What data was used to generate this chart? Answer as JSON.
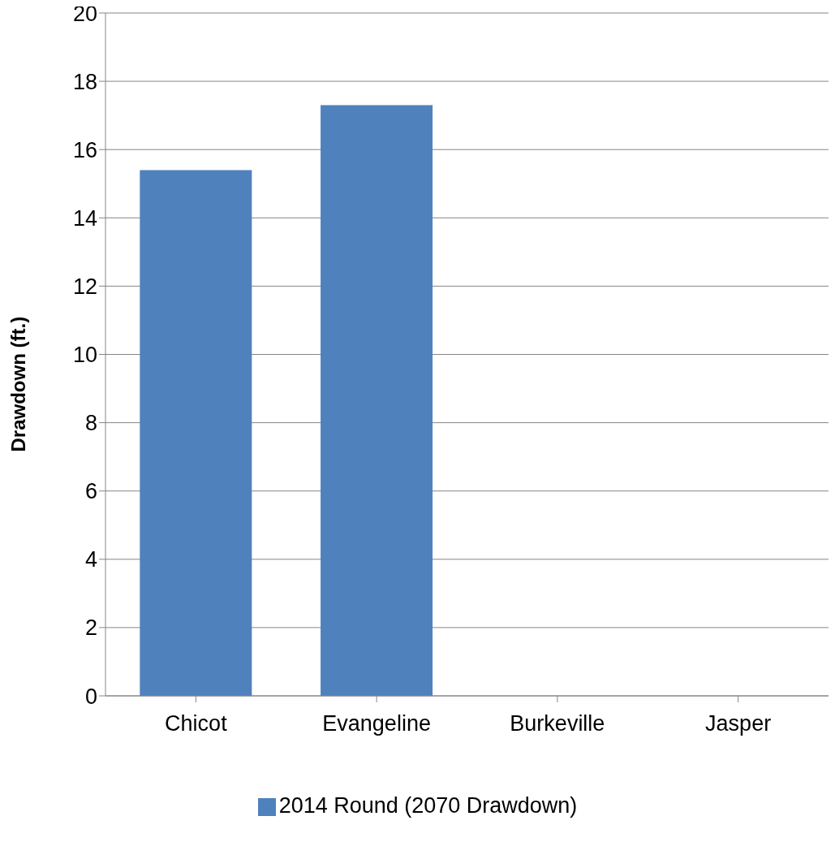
{
  "chart_data": {
    "type": "bar",
    "ylabel": "Drawdown (ft.)",
    "categories": [
      "Chicot",
      "Evangeline",
      "Burkeville",
      "Jasper"
    ],
    "series": [
      {
        "name": "2014 Round (2070 Drawdown)",
        "color": "#4f81bd",
        "values": [
          15.4,
          17.3,
          null,
          null
        ]
      }
    ],
    "ylim": [
      0,
      20
    ],
    "yticks": [
      0,
      2,
      4,
      6,
      8,
      10,
      12,
      14,
      16,
      18,
      20
    ],
    "grid": "y",
    "legend": "bottom"
  }
}
